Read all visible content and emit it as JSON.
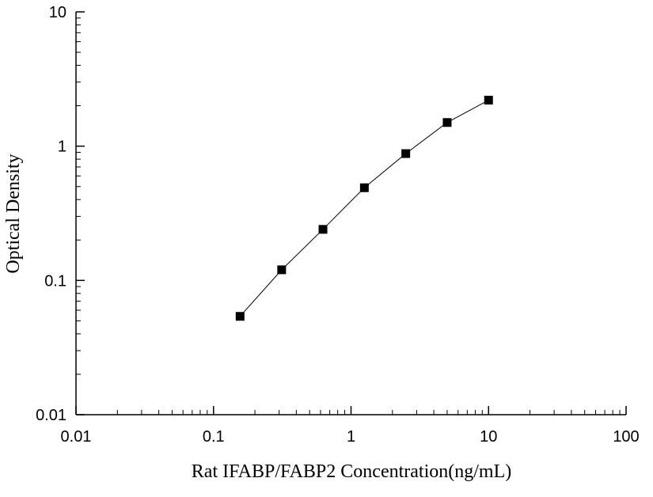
{
  "chart_data": {
    "type": "scatter",
    "title": "",
    "xlabel": "Rat IFABP/FABP2 Concentration(ng/mL)",
    "ylabel": "Optical Density",
    "xscale": "log",
    "yscale": "log",
    "xlim": [
      0.01,
      100
    ],
    "ylim": [
      0.01,
      10
    ],
    "xticks": [
      "0.01",
      "0.1",
      "1",
      "10",
      "100"
    ],
    "yticks": [
      "0.01",
      "0.1",
      "1",
      "10"
    ],
    "grid": false,
    "legend": "none",
    "marker": "square",
    "line": "connected",
    "color": "#000000",
    "series": [
      {
        "x": [
          0.156,
          0.313,
          0.625,
          1.25,
          2.5,
          5,
          10
        ],
        "y": [
          0.054,
          0.12,
          0.24,
          0.49,
          0.88,
          1.5,
          2.2
        ]
      }
    ]
  }
}
